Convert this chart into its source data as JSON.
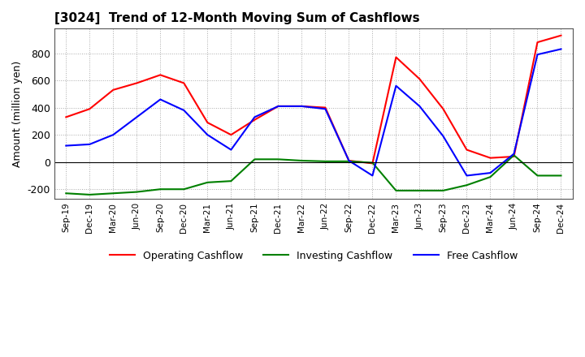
{
  "title": "[3024]  Trend of 12-Month Moving Sum of Cashflows",
  "ylabel": "Amount (million yen)",
  "ylim": [
    -270,
    980
  ],
  "yticks": [
    -200,
    0,
    200,
    400,
    600,
    800
  ],
  "background_color": "#ffffff",
  "grid_color": "#aaaaaa",
  "x_labels": [
    "Sep-19",
    "Dec-19",
    "Mar-20",
    "Jun-20",
    "Sep-20",
    "Dec-20",
    "Mar-21",
    "Jun-21",
    "Sep-21",
    "Dec-21",
    "Mar-22",
    "Jun-22",
    "Sep-22",
    "Dec-22",
    "Mar-23",
    "Jun-23",
    "Sep-23",
    "Dec-23",
    "Mar-24",
    "Jun-24",
    "Sep-24",
    "Dec-24"
  ],
  "operating": [
    330,
    390,
    530,
    580,
    640,
    580,
    290,
    200,
    310,
    410,
    410,
    400,
    10,
    -10,
    770,
    610,
    390,
    90,
    30,
    40,
    880,
    930
  ],
  "investing": [
    -230,
    -240,
    -230,
    -220,
    -200,
    -200,
    -150,
    -140,
    20,
    20,
    10,
    5,
    5,
    -5,
    -210,
    -210,
    -210,
    -170,
    -110,
    50,
    -100,
    -100
  ],
  "free": [
    120,
    130,
    200,
    330,
    460,
    380,
    200,
    90,
    330,
    410,
    410,
    390,
    10,
    -100,
    560,
    410,
    190,
    -100,
    -80,
    60,
    790,
    830
  ],
  "line_colors": {
    "operating": "#ff0000",
    "investing": "#008000",
    "free": "#0000ff"
  },
  "line_width": 1.5,
  "legend_labels": [
    "Operating Cashflow",
    "Investing Cashflow",
    "Free Cashflow"
  ]
}
